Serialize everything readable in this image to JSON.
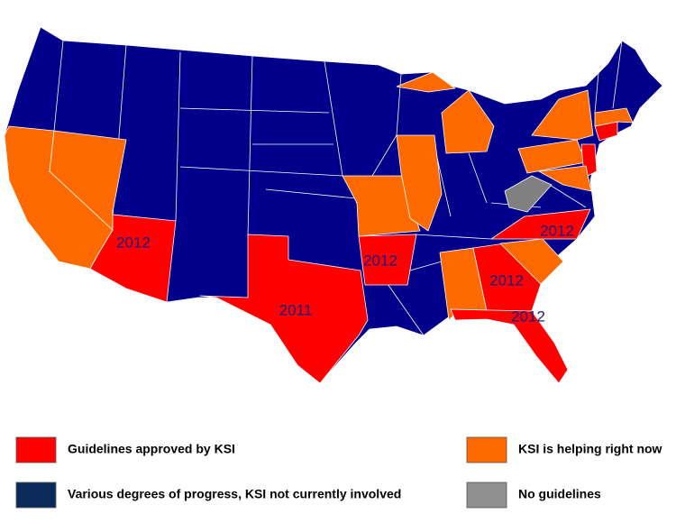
{
  "map_labels": [
    "2012",
    "2011",
    "2012",
    "2012",
    "2012",
    "2012"
  ],
  "legend": [
    {
      "label": "Guidelines approved by KSI",
      "color": "#ff0000"
    },
    {
      "label": "KSI is helping right now",
      "color": "#ff6a00"
    },
    {
      "label": "Various degrees of progress, KSI not currently involved",
      "color": "#0a2a5a"
    },
    {
      "label": "No guidelines",
      "color": "#909090"
    }
  ]
}
